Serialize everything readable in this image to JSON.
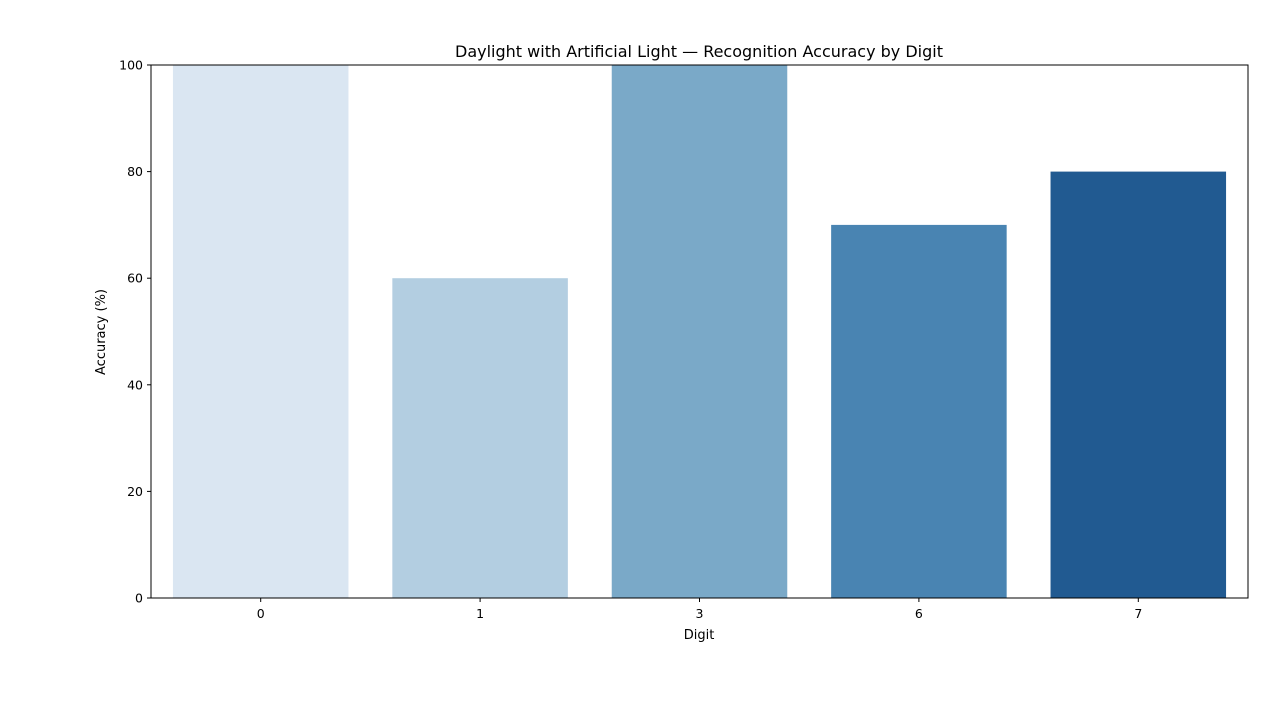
{
  "chart_data": {
    "type": "bar",
    "title": "Daylight with Artificial Light — Recognition Accuracy by Digit",
    "xlabel": "Digit",
    "ylabel": "Accuracy (%)",
    "categories": [
      "0",
      "1",
      "3",
      "6",
      "7"
    ],
    "values": [
      100,
      60,
      100,
      70,
      80
    ],
    "colors": [
      "#dae6f2",
      "#b3cee1",
      "#7aa9c8",
      "#4984b2",
      "#215a91"
    ],
    "ylim": [
      0,
      100
    ],
    "yticks": [
      0,
      20,
      40,
      60,
      80,
      100
    ],
    "grid": false,
    "legend": "none"
  }
}
